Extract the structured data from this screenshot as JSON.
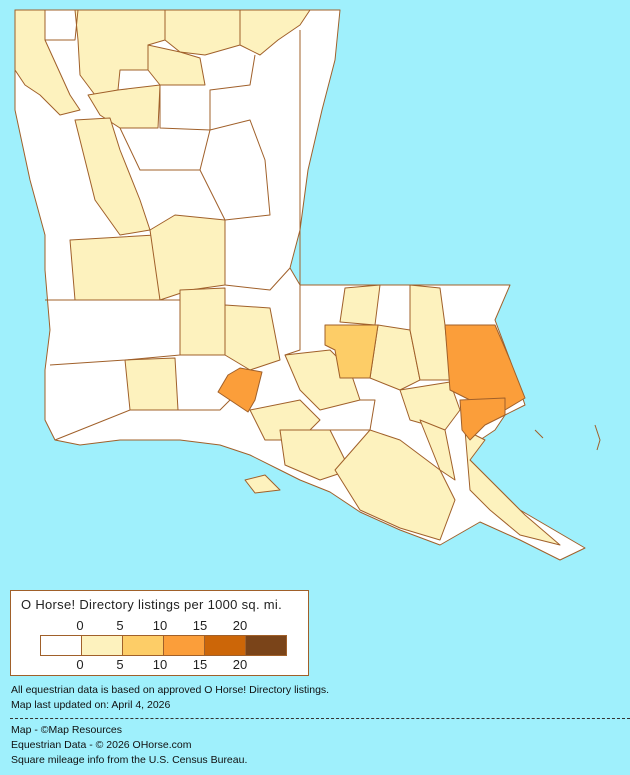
{
  "legend": {
    "title": "O Horse! Directory listings per 1000 sq. mi.",
    "ticks_top": [
      "0",
      "5",
      "10",
      "15",
      "20"
    ],
    "ticks_bottom": [
      "0",
      "5",
      "10",
      "15",
      "20"
    ],
    "colors": [
      "#ffffff",
      "#fdf2be",
      "#fdcd67",
      "#fb9e3a",
      "#cc6608",
      "#7a4419"
    ]
  },
  "notes": {
    "data_basis": "All equestrian data is based on approved O Horse! Directory listings.",
    "updated": "Map last updated on: April 4, 2026",
    "map_credit": "Map - ©Map Resources",
    "data_credit": "Equestrian Data - © 2026 OHorse.com",
    "census": "Square mileage info from the U.S. Census Bureau."
  },
  "map": {
    "water_color": "#9ff0fc",
    "border_color": "#a0602a"
  }
}
